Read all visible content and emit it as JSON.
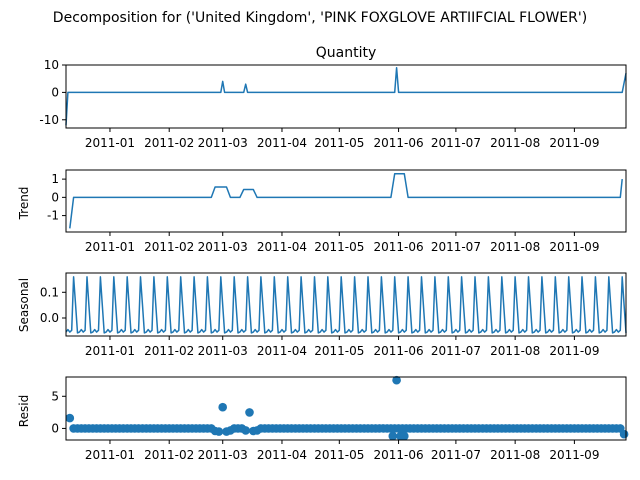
{
  "suptitle": "Decomposition for ('United Kingdom', 'PINK FOXGLOVE ARTIIFCIAL FLOWER')",
  "x_tick_labels": [
    "2011-01",
    "2011-02",
    "2011-03",
    "2011-04",
    "2011-05",
    "2011-06",
    "2011-07",
    "2011-08",
    "2011-09"
  ],
  "colors": {
    "series": "#1f77b4",
    "axes": "#000000",
    "background": "#ffffff"
  },
  "chart_data": [
    {
      "type": "line",
      "title": "Quantity",
      "ylabel": "",
      "xlim": [
        "2010-12-09",
        "2011-09-28"
      ],
      "ylim": [
        -13,
        10
      ],
      "yticks": [
        10,
        0,
        -10
      ],
      "x": [
        "2010-12-09",
        "2010-12-10",
        "2011-02-28",
        "2011-03-01",
        "2011-03-02",
        "2011-03-12",
        "2011-03-13",
        "2011-03-14",
        "2011-05-30",
        "2011-05-31",
        "2011-06-01",
        "2011-09-26",
        "2011-09-28"
      ],
      "values": [
        -12,
        0,
        0,
        4,
        0,
        0,
        3,
        0,
        0,
        9,
        0,
        0,
        7
      ]
    },
    {
      "type": "line",
      "title": "",
      "ylabel": "Trend",
      "xlim": [
        "2010-12-09",
        "2011-09-28"
      ],
      "ylim": [
        -1.9,
        1.5
      ],
      "yticks": [
        1,
        0,
        -1
      ],
      "x": [
        "2010-12-11",
        "2010-12-13",
        "2011-02-23",
        "2011-02-25",
        "2011-03-03",
        "2011-03-05",
        "2011-03-10",
        "2011-03-12",
        "2011-03-17",
        "2011-03-19",
        "2011-05-28",
        "2011-05-30",
        "2011-06-04",
        "2011-06-06",
        "2011-09-25",
        "2011-09-26"
      ],
      "values": [
        -1.7,
        0,
        0,
        0.57,
        0.57,
        0,
        0,
        0.43,
        0.43,
        0,
        0,
        1.29,
        1.29,
        0,
        0,
        1
      ]
    },
    {
      "type": "line",
      "title": "",
      "ylabel": "Seasonal",
      "xlim": [
        "2010-12-09",
        "2011-09-28"
      ],
      "ylim": [
        -0.07,
        0.175
      ],
      "yticks": [
        0.1,
        0.0
      ],
      "period_days": 7,
      "pattern": [
        -0.055,
        -0.045,
        -0.055,
        -0.048,
        0.16,
        0.05,
        -0.058
      ],
      "x_start": "2010-12-09",
      "x_end": "2011-09-28"
    },
    {
      "type": "scatter",
      "title": "",
      "ylabel": "Resid",
      "xlim": [
        "2010-12-09",
        "2011-09-28"
      ],
      "ylim": [
        -1.8,
        8
      ],
      "yticks": [
        5,
        0
      ],
      "x_start": "2010-12-11",
      "x_end": "2011-09-27",
      "step_days": 2,
      "baseline": 0,
      "outliers": [
        {
          "x": "2010-12-11",
          "y": 1.6
        },
        {
          "x": "2011-02-25",
          "y": -0.4
        },
        {
          "x": "2011-02-27",
          "y": -0.5
        },
        {
          "x": "2011-03-01",
          "y": 3.3
        },
        {
          "x": "2011-03-03",
          "y": -0.5
        },
        {
          "x": "2011-03-05",
          "y": -0.3
        },
        {
          "x": "2011-03-13",
          "y": -0.3
        },
        {
          "x": "2011-03-15",
          "y": 2.5
        },
        {
          "x": "2011-03-17",
          "y": -0.4
        },
        {
          "x": "2011-03-19",
          "y": -0.3
        },
        {
          "x": "2011-05-29",
          "y": -1.2
        },
        {
          "x": "2011-05-31",
          "y": 7.5
        },
        {
          "x": "2011-06-02",
          "y": -1.2
        },
        {
          "x": "2011-06-04",
          "y": -1.2
        },
        {
          "x": "2011-09-27",
          "y": -0.9
        }
      ]
    }
  ]
}
